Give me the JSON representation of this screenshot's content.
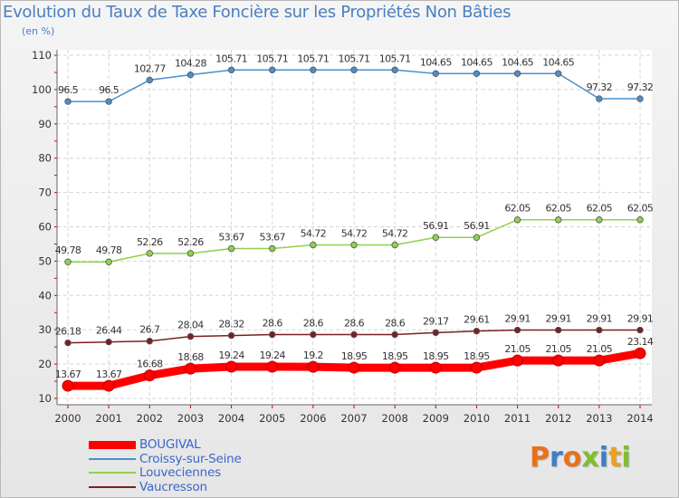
{
  "title": "Evolution du Taux de Taxe Foncière sur les Propriétés Non Bâties",
  "subtitle": "(en %)",
  "brand": {
    "text": "Proxiti",
    "letters": [
      {
        "ch": "P",
        "color": "#e8721c"
      },
      {
        "ch": "r",
        "color": "#3c7fc4"
      },
      {
        "ch": "o",
        "color": "#e8721c"
      },
      {
        "ch": "x",
        "color": "#7fbf2a"
      },
      {
        "ch": "i",
        "color": "#3c7fc4"
      },
      {
        "ch": "t",
        "color": "#e8a21c"
      },
      {
        "ch": "i",
        "color": "#7fbf2a"
      }
    ]
  },
  "chart_data": {
    "type": "line",
    "title": "Evolution du Taux de Taxe Foncière sur les Propriétés Non Bâties",
    "ylabel": "(en %)",
    "xlabel": "",
    "ylim": [
      10,
      110
    ],
    "yticks": [
      10,
      20,
      30,
      40,
      50,
      60,
      70,
      80,
      90,
      100,
      110
    ],
    "grid": true,
    "legend_position": "bottom-left",
    "categories": [
      "2000",
      "2001",
      "2002",
      "2003",
      "2004",
      "2005",
      "2006",
      "2007",
      "2008",
      "2009",
      "2010",
      "2011",
      "2012",
      "2013",
      "2014"
    ],
    "series": [
      {
        "name": "BOUGIVAL",
        "color": "#ff0000",
        "thick": true,
        "values": [
          13.67,
          13.67,
          16.68,
          18.68,
          19.24,
          19.24,
          19.2,
          18.95,
          18.95,
          18.95,
          18.95,
          21.05,
          21.05,
          21.05,
          23.14
        ],
        "labels": [
          "13.67",
          "13.67",
          "16.68",
          "18.68",
          "19.24",
          "19.24",
          "19.2",
          "18.95",
          "18.95",
          "18.95",
          "18.95",
          "21.05",
          "21.05",
          "21.05",
          "23.14"
        ]
      },
      {
        "name": "Croissy-sur-Seine",
        "color": "#4a8fcc",
        "thick": false,
        "values": [
          96.5,
          96.5,
          102.77,
          104.28,
          105.71,
          105.71,
          105.71,
          105.71,
          105.71,
          104.65,
          104.65,
          104.65,
          104.65,
          97.32,
          97.32
        ],
        "labels": [
          "96.5",
          "96.5",
          "102.77",
          "104.28",
          "105.71",
          "105.71",
          "105.71",
          "105.71",
          "105.71",
          "104.65",
          "104.65",
          "104.65",
          "104.65",
          "97.32",
          "97.32"
        ]
      },
      {
        "name": "Louveciennes",
        "color": "#8fd14f",
        "thick": false,
        "values": [
          49.78,
          49.78,
          52.26,
          52.26,
          53.67,
          53.67,
          54.72,
          54.72,
          54.72,
          56.91,
          56.91,
          62.05,
          62.05,
          62.05,
          62.05
        ],
        "labels": [
          "49.78",
          "49.78",
          "52.26",
          "52.26",
          "53.67",
          "53.67",
          "54.72",
          "54.72",
          "54.72",
          "56.91",
          "56.91",
          "62.05",
          "62.05",
          "62.05",
          "62.05"
        ]
      },
      {
        "name": "Vaucresson",
        "color": "#7a2020",
        "thick": false,
        "values": [
          26.18,
          26.44,
          26.7,
          28.04,
          28.32,
          28.6,
          28.6,
          28.6,
          28.6,
          29.17,
          29.61,
          29.91,
          29.91,
          29.91,
          29.91
        ],
        "labels": [
          "26.18",
          "26.44",
          "26.7",
          "28.04",
          "28.32",
          "28.6",
          "28.6",
          "28.6",
          "28.6",
          "29.17",
          "29.61",
          "29.91",
          "29.91",
          "29.91",
          "29.91"
        ]
      }
    ]
  }
}
